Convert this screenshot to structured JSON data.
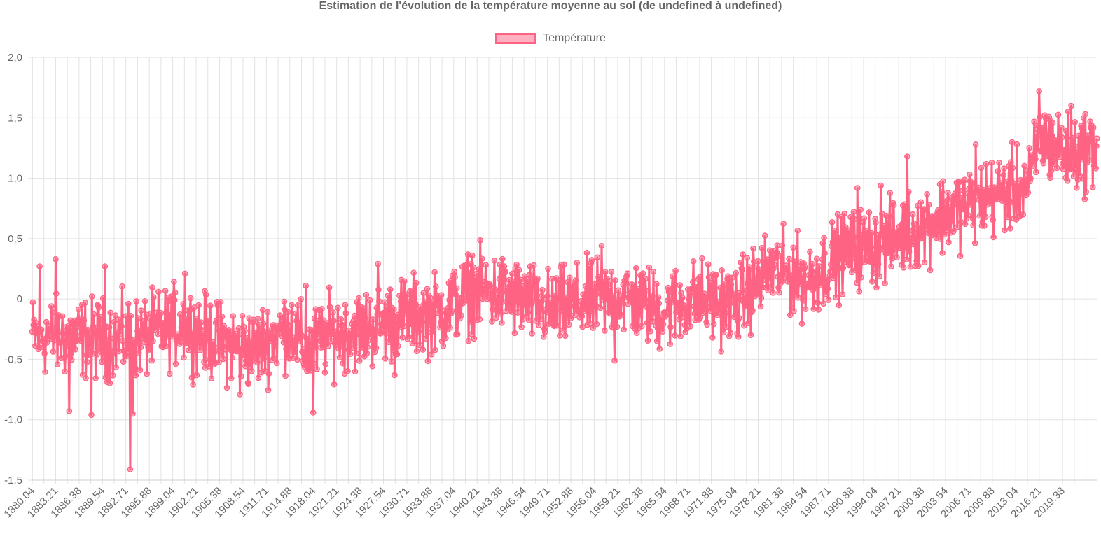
{
  "chart_data": {
    "type": "line",
    "title": "Estimation de l'évolution de la température moyenne au sol (de undefined à undefined)",
    "legend_position": "top",
    "grid": true,
    "series": [
      {
        "name": "Température",
        "color": "#ff6384",
        "fill": "rgba(255,99,132,0.5)"
      }
    ],
    "ylim": [
      -1.5,
      2.0
    ],
    "y_ticks": [
      {
        "value": 2.0,
        "label": "2,0"
      },
      {
        "value": 1.5,
        "label": "1,5"
      },
      {
        "value": 1.0,
        "label": "1,0"
      },
      {
        "value": 0.5,
        "label": "0,5"
      },
      {
        "value": 0,
        "label": "0"
      },
      {
        "value": -0.5,
        "label": "-0,5"
      },
      {
        "value": -1.0,
        "label": "-1,0"
      },
      {
        "value": -1.5,
        "label": "-1,5"
      }
    ],
    "x_range": [
      1880.04,
      2024.0
    ],
    "x_tick_labels": [
      "1880.04",
      "1883.21",
      "1886.38",
      "1889.54",
      "1892.71",
      "1895.88",
      "1899.04",
      "1902.21",
      "1905.38",
      "1908.54",
      "1911.71",
      "1914.88",
      "1918.04",
      "1921.21",
      "1924.38",
      "1927.54",
      "1930.71",
      "1933.88",
      "1937.04",
      "1940.21",
      "1943.38",
      "1946.54",
      "1949.71",
      "1952.88",
      "1956.04",
      "1959.21",
      "1962.38",
      "1965.54",
      "1968.71",
      "1971.88",
      "1975.04",
      "1978.21",
      "1981.38",
      "1984.54",
      "1987.71",
      "1990.88",
      "1994.04",
      "1997.21",
      "2000.38",
      "2003.54",
      "2006.71",
      "2009.88",
      "2013.04",
      "2016.21",
      "2019.38"
    ],
    "x_tick_step": 3.1667,
    "trend": [
      [
        1880,
        -0.3
      ],
      [
        1885,
        -0.32
      ],
      [
        1890,
        -0.33
      ],
      [
        1895,
        -0.32
      ],
      [
        1900,
        -0.2
      ],
      [
        1905,
        -0.35
      ],
      [
        1910,
        -0.42
      ],
      [
        1915,
        -0.22
      ],
      [
        1917,
        -0.45
      ],
      [
        1920,
        -0.3
      ],
      [
        1925,
        -0.25
      ],
      [
        1930,
        -0.15
      ],
      [
        1935,
        -0.12
      ],
      [
        1940,
        0.08
      ],
      [
        1945,
        0.02
      ],
      [
        1950,
        -0.1
      ],
      [
        1955,
        -0.02
      ],
      [
        1960,
        0.02
      ],
      [
        1965,
        -0.1
      ],
      [
        1970,
        0.0
      ],
      [
        1975,
        -0.05
      ],
      [
        1980,
        0.25
      ],
      [
        1985,
        0.15
      ],
      [
        1990,
        0.4
      ],
      [
        1995,
        0.45
      ],
      [
        2000,
        0.6
      ],
      [
        2005,
        0.75
      ],
      [
        2010,
        0.85
      ],
      [
        2015,
        0.95
      ],
      [
        2016.2,
        1.35
      ],
      [
        2020,
        1.2
      ],
      [
        2024,
        1.25
      ]
    ],
    "noise_amplitude": 0.16,
    "extremes": [
      [
        1881.0,
        0.27
      ],
      [
        1883.2,
        0.33
      ],
      [
        1885.0,
        -0.93
      ],
      [
        1888.0,
        -0.96
      ],
      [
        1889.9,
        0.27
      ],
      [
        1893.3,
        -1.41
      ],
      [
        1893.6,
        -0.95
      ],
      [
        1900.7,
        0.21
      ],
      [
        1908.1,
        -0.79
      ],
      [
        1917.0,
        0.11
      ],
      [
        1918.0,
        -0.94
      ],
      [
        1926.8,
        0.29
      ],
      [
        1929.0,
        -0.63
      ],
      [
        1939.5,
        0.36
      ],
      [
        1957.0,
        0.44
      ],
      [
        1958.8,
        -0.51
      ],
      [
        1991.6,
        0.92
      ],
      [
        1994.8,
        0.94
      ],
      [
        1998.4,
        1.18
      ],
      [
        2007.6,
        1.28
      ],
      [
        2016.21,
        1.72
      ],
      [
        2020.5,
        1.6
      ],
      [
        2023.5,
        1.42
      ]
    ]
  }
}
